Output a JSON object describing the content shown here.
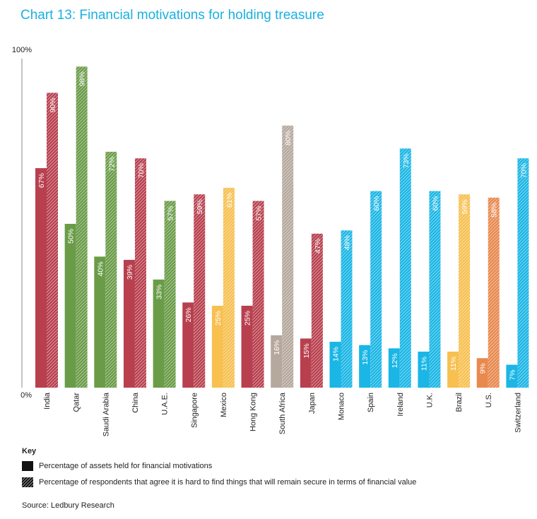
{
  "title": "Chart 13: Financial motivations for holding treasure",
  "chart_data": {
    "type": "bar",
    "ylim": [
      0,
      100
    ],
    "y_tick_labels": [
      "0%",
      "100%"
    ],
    "grid": false,
    "categories": [
      "India",
      "Qatar",
      "Saudi Arabia",
      "China",
      "U.A.E.",
      "Singapore",
      "Mexico",
      "Hong Kong",
      "South Africa",
      "Japan",
      "Monaco",
      "Spain",
      "Ireland",
      "U.K.",
      "Brazil",
      "U.S.",
      "Switzerland"
    ],
    "colors": [
      "#b8404e",
      "#6a9c48",
      "#6a9c48",
      "#b8404e",
      "#6a9c48",
      "#b8404e",
      "#f7c050",
      "#b8404e",
      "#b5a89c",
      "#b8404e",
      "#1ab6e5",
      "#1ab6e5",
      "#1ab6e5",
      "#1ab6e5",
      "#f7c050",
      "#e8894e",
      "#1ab6e5"
    ],
    "series": [
      {
        "values": [
          67,
          50,
          40,
          39,
          33,
          26,
          25,
          25,
          16,
          15,
          14,
          13,
          12,
          11,
          11,
          9,
          7
        ],
        "labels": [
          "67%",
          "50%",
          "40%",
          "39%",
          "33%",
          "26%",
          "25%",
          "25%",
          "16%",
          "15%",
          "14%",
          "13%",
          "12%",
          "11%",
          "11%",
          "9%",
          "7%"
        ],
        "pattern": "solid"
      },
      {
        "values": [
          90,
          98,
          72,
          70,
          57,
          59,
          61,
          57,
          80,
          47,
          48,
          60,
          73,
          60,
          59,
          58,
          70
        ],
        "labels": [
          "90%",
          "98%",
          "72%",
          "70%",
          "57%",
          "59%",
          "61%",
          "57%",
          "80%",
          "47%",
          "48%",
          "60%",
          "73%",
          "60%",
          "59%",
          "58%",
          "70%"
        ],
        "pattern": "hatched"
      }
    ]
  },
  "key": {
    "title": "Key",
    "items": [
      {
        "label": "Percentage of assets held for financial motivations",
        "pattern": "solid",
        "color": "#111111"
      },
      {
        "label": "Percentage of respondents that agree it is hard to find things that will remain secure in terms of financial value",
        "pattern": "hatched",
        "color": "#111111"
      }
    ]
  },
  "source": "Source: Ledbury Research"
}
